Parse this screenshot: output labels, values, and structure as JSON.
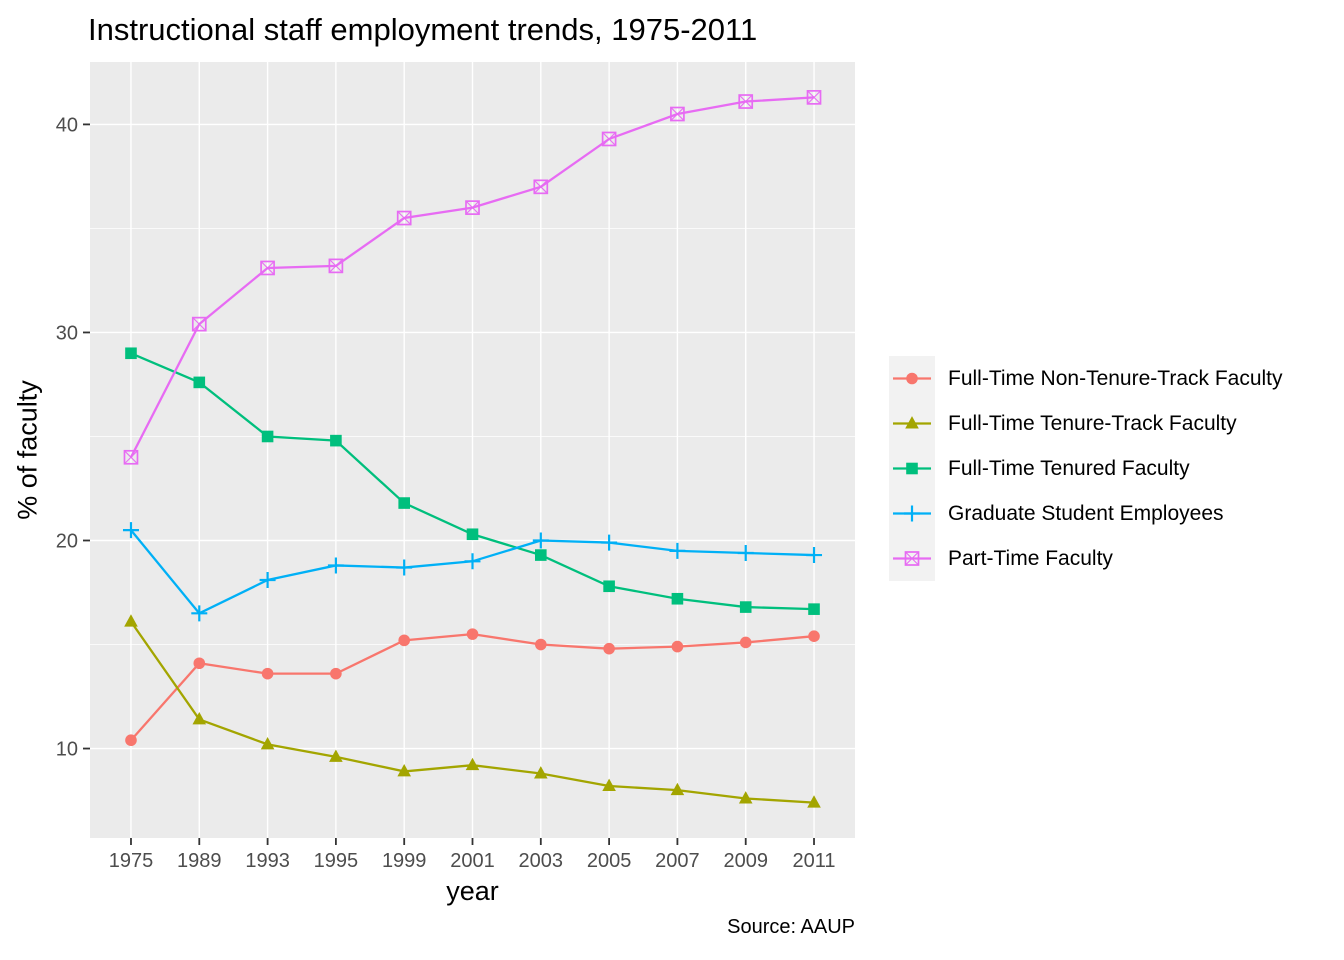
{
  "title": "Instructional staff employment trends, 1975-2011",
  "caption": "Source: AAUP",
  "x_axis": {
    "label": "year"
  },
  "y_axis": {
    "label": "% of faculty"
  },
  "colors": {
    "background": "#FFFFFF",
    "panel_bg": "#EBEBEB",
    "gridline": "#FFFFFF",
    "tick_mark": "#333333",
    "tick_label": "#4D4D4D",
    "text": "#000000",
    "legend_key_bg": "#F2F2F2"
  },
  "chart_data": {
    "type": "line",
    "title": "Instructional staff employment trends, 1975-2011",
    "xlabel": "year",
    "ylabel": "% of faculty",
    "categories": [
      "1975",
      "1989",
      "1993",
      "1995",
      "1999",
      "2001",
      "2003",
      "2005",
      "2007",
      "2009",
      "2011"
    ],
    "ylim": [
      5.7,
      43.0
    ],
    "y_major_ticks": [
      10,
      20,
      30,
      40
    ],
    "y_minor_gridlines": [
      15,
      25,
      35
    ],
    "grid": true,
    "legend_position": "right",
    "series": [
      {
        "name": "Full-Time Non-Tenure-Track Faculty",
        "color": "#F8766D",
        "marker": "circle",
        "values": [
          10.4,
          14.1,
          13.6,
          13.6,
          15.2,
          15.5,
          15.0,
          14.8,
          14.9,
          15.1,
          15.4
        ]
      },
      {
        "name": "Full-Time Tenure-Track Faculty",
        "color": "#A3A500",
        "marker": "triangle",
        "values": [
          16.1,
          11.4,
          10.2,
          9.6,
          8.9,
          9.2,
          8.8,
          8.2,
          8.0,
          7.6,
          7.4
        ]
      },
      {
        "name": "Full-Time Tenured Faculty",
        "color": "#00BF7D",
        "marker": "square",
        "values": [
          29.0,
          27.6,
          25.0,
          24.8,
          21.8,
          20.3,
          19.3,
          17.8,
          17.2,
          16.8,
          16.7
        ]
      },
      {
        "name": "Graduate Student Employees",
        "color": "#00B0F6",
        "marker": "plus",
        "values": [
          20.5,
          16.5,
          18.1,
          18.8,
          18.7,
          19.0,
          20.0,
          19.9,
          19.5,
          19.4,
          19.3
        ]
      },
      {
        "name": "Part-Time Faculty",
        "color": "#E76BF3",
        "marker": "square-x",
        "values": [
          24.0,
          30.4,
          33.1,
          33.2,
          35.5,
          36.0,
          37.0,
          39.3,
          40.5,
          41.1,
          41.3
        ]
      }
    ]
  }
}
